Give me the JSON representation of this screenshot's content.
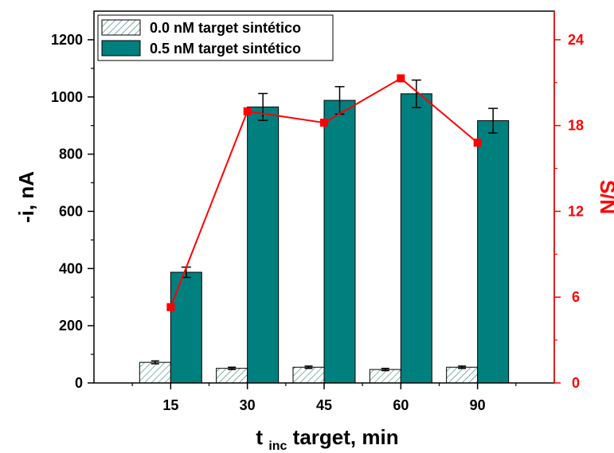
{
  "chart_data": {
    "type": "bar",
    "categories": [
      "15",
      "30",
      "45",
      "60",
      "90"
    ],
    "series": [
      {
        "name": "0.0 nM target sintético",
        "values": [
          72,
          51,
          55,
          47,
          55
        ],
        "errors": [
          5,
          4,
          4,
          4,
          4
        ],
        "color": "#2f7f6f",
        "pattern": "hatched"
      },
      {
        "name": "0.5 nM target sintético",
        "values": [
          387,
          965,
          988,
          1011,
          917
        ],
        "errors": [
          18,
          47,
          48,
          48,
          43
        ],
        "color": "#007f7f",
        "pattern": "solid"
      }
    ],
    "secondary_series": {
      "name": "S/N",
      "type": "line",
      "values": [
        5.3,
        19.0,
        18.2,
        21.3,
        16.8
      ],
      "color": "#ff0000",
      "marker": "square"
    },
    "xlabel_main": "t",
    "xlabel_sub": "inc",
    "xlabel_rest": "target, min",
    "ylabel": "-i, nA",
    "y2label": "S/N",
    "ylim": [
      0,
      1300
    ],
    "y2lim": [
      0,
      26
    ],
    "y_ticks": [
      "0",
      "200",
      "400",
      "600",
      "800",
      "1000",
      "1200"
    ],
    "y2_ticks": [
      "0",
      "6",
      "12",
      "18",
      "24"
    ],
    "legend_position": "top-left",
    "grid": false
  }
}
